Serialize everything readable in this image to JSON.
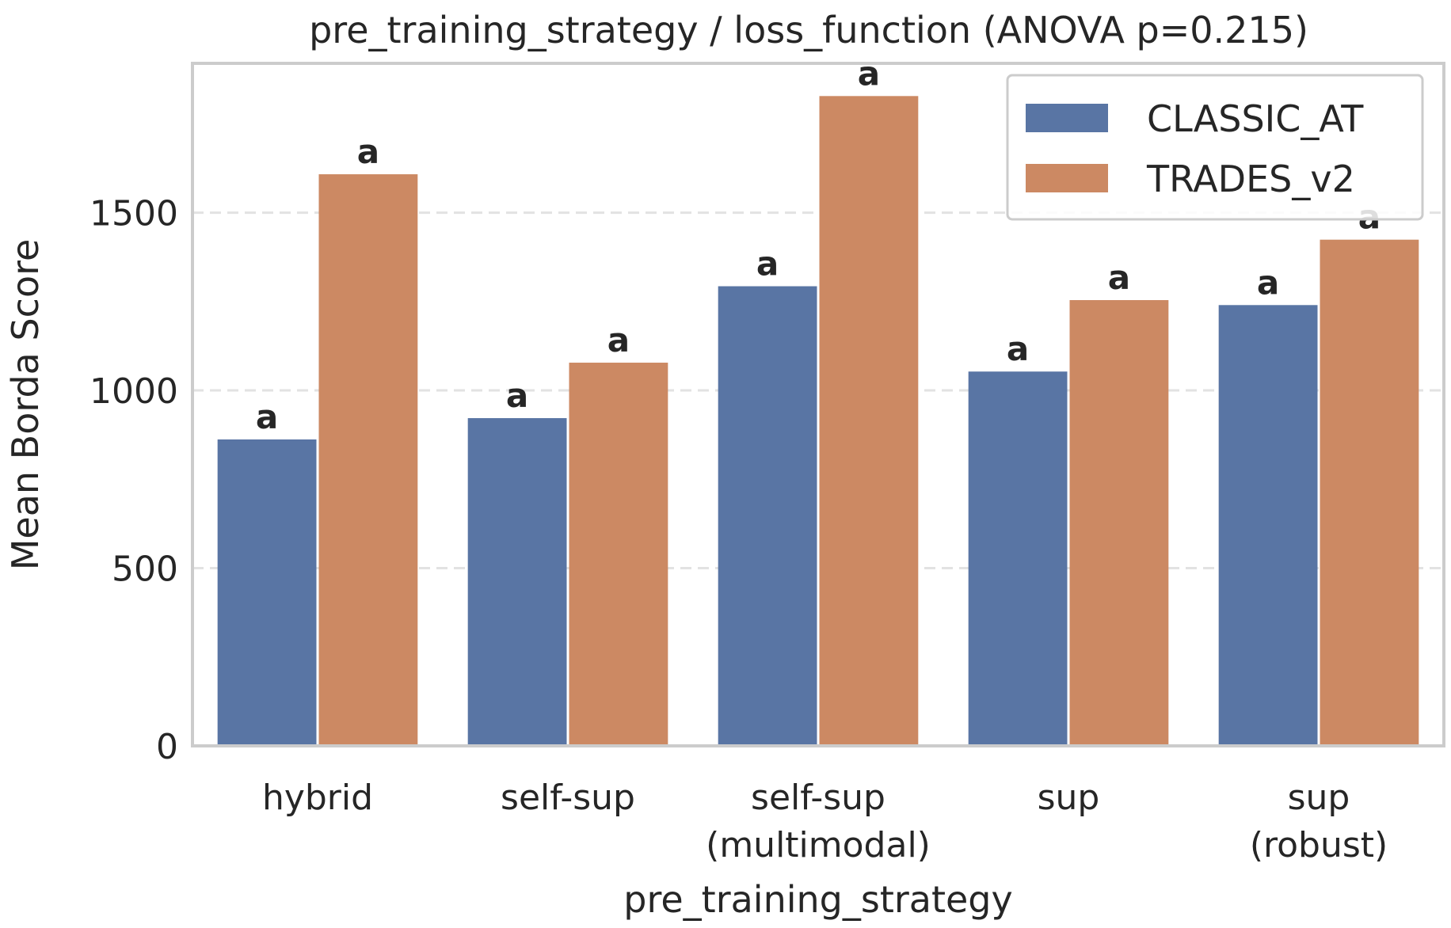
{
  "chart_data": {
    "type": "bar",
    "title": "pre_training_strategy / loss_function  (ANOVA p=0.215)",
    "xlabel": "pre_training_strategy",
    "ylabel": "Mean Borda Score",
    "categories": [
      [
        "hybrid"
      ],
      [
        "self-sup"
      ],
      [
        "self-sup",
        "(multimodal)"
      ],
      [
        "sup"
      ],
      [
        "sup",
        "(robust)"
      ]
    ],
    "series": [
      {
        "name": "CLASSIC_AT",
        "color": "#5975a4",
        "values": [
          862,
          922,
          1293,
          1053,
          1240
        ]
      },
      {
        "name": "TRADES_v2",
        "color": "#cc8963",
        "values": [
          1608,
          1078,
          1828,
          1254,
          1424
        ]
      }
    ],
    "bar_labels": [
      [
        "a",
        "a",
        "a",
        "a",
        "a"
      ],
      [
        "a",
        "a",
        "a",
        "a",
        "a"
      ]
    ],
    "yticks": [
      0,
      500,
      1000,
      1500
    ],
    "ylim": [
      0,
      1920
    ],
    "grid": "y, dashed",
    "legend": "top-right"
  }
}
